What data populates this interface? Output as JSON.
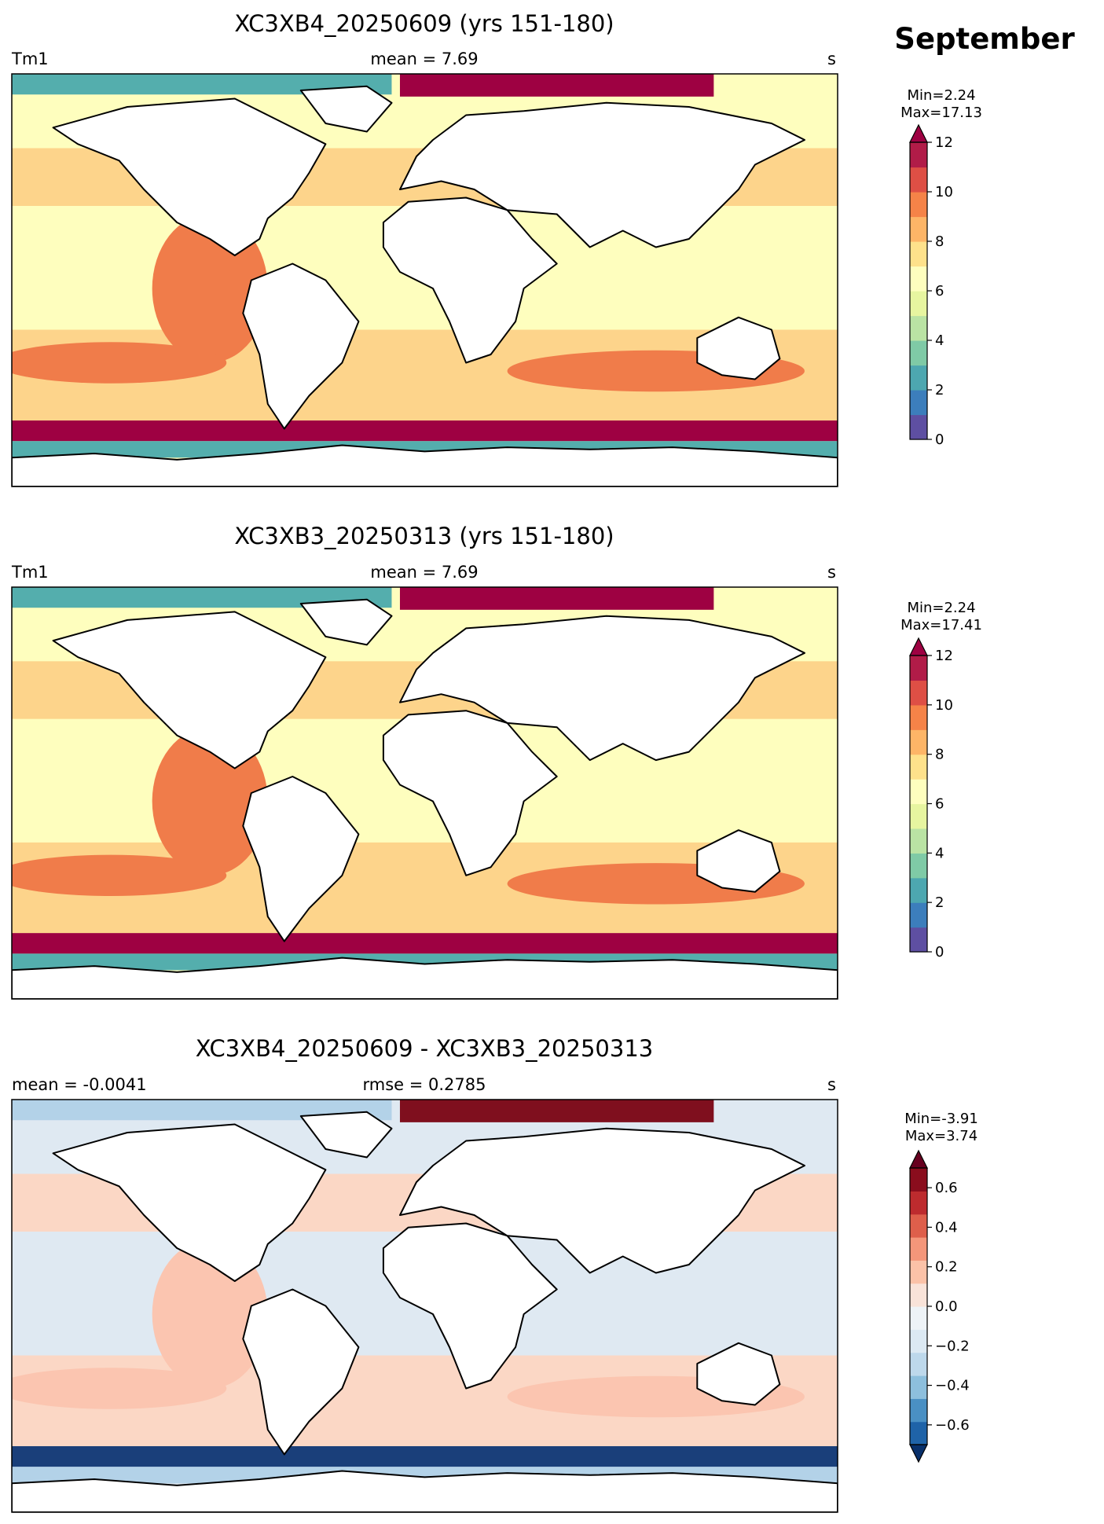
{
  "figure": {
    "month_label": "September"
  },
  "panels": [
    {
      "title": "XC3XB4_20250609 (yrs 151-180)",
      "left_label": "Tm1",
      "center_label": "mean = 7.69",
      "right_label": "s",
      "colorbar": {
        "stats_min": "Min=2.24",
        "stats_max": "Max=17.13",
        "ticks": [
          "0",
          "2",
          "4",
          "6",
          "8",
          "10",
          "12"
        ],
        "range": [
          0,
          12
        ],
        "extend": "max",
        "levels": [
          "#5e4fa2",
          "#3c7ebc",
          "#4da7b0",
          "#7fcaa6",
          "#bae3a4",
          "#e7f5a0",
          "#fefebe",
          "#fee18b",
          "#fdb567",
          "#f58348",
          "#de4f45",
          "#b11c48",
          "#9e0142"
        ]
      },
      "map": {
        "palette": "Spectral_r",
        "arctic_band": "#9e0142",
        "southern_band": "#9e0142",
        "antarctic_shelf": "#54aead",
        "open_ocean": "#fdd48b",
        "eastern_pacific": "#f07c4a",
        "tropics": "#fefebe"
      }
    },
    {
      "title": "XC3XB3_20250313 (yrs 151-180)",
      "left_label": "Tm1",
      "center_label": "mean = 7.69",
      "right_label": "s",
      "colorbar": {
        "stats_min": "Min=2.24",
        "stats_max": "Max=17.41",
        "ticks": [
          "0",
          "2",
          "4",
          "6",
          "8",
          "10",
          "12"
        ],
        "range": [
          0,
          12
        ],
        "extend": "max",
        "levels": [
          "#5e4fa2",
          "#3c7ebc",
          "#4da7b0",
          "#7fcaa6",
          "#bae3a4",
          "#e7f5a0",
          "#fefebe",
          "#fee18b",
          "#fdb567",
          "#f58348",
          "#de4f45",
          "#b11c48",
          "#9e0142"
        ]
      },
      "map": {
        "palette": "Spectral_r",
        "arctic_band": "#9e0142",
        "southern_band": "#9e0142",
        "antarctic_shelf": "#54aead",
        "open_ocean": "#fdd48b",
        "eastern_pacific": "#f07c4a",
        "tropics": "#fefebe"
      }
    },
    {
      "title": "XC3XB4_20250609 - XC3XB3_20250313",
      "left_label": "mean = -0.0041",
      "center_label": "rmse = 0.2785",
      "right_label": "s",
      "colorbar": {
        "stats_min": "Min=-3.91",
        "stats_max": "Max=3.74",
        "ticks": [
          "−0.6",
          "−0.4",
          "−0.2",
          "0.0",
          "0.2",
          "0.4",
          "0.6"
        ],
        "range": [
          -0.7,
          0.7
        ],
        "extend": "both",
        "levels": [
          "#08306b",
          "#1f63a8",
          "#4a90c4",
          "#8dbfdd",
          "#bdd8eb",
          "#dce9f3",
          "#eef3f7",
          "#f9e3d9",
          "#fbc2a8",
          "#f4967a",
          "#de5f4b",
          "#bd2b2e",
          "#8a0d1d",
          "#67001f"
        ]
      },
      "map": {
        "palette": "RdBu_r",
        "arctic_band": "#7f0f1e",
        "southern_band": "#1a3f7a",
        "antarctic_shelf": "#b3d2e8",
        "open_ocean": "#fbd7c5",
        "eastern_pacific": "#fbc5b0",
        "tropics": "#dfe9f2"
      }
    }
  ]
}
